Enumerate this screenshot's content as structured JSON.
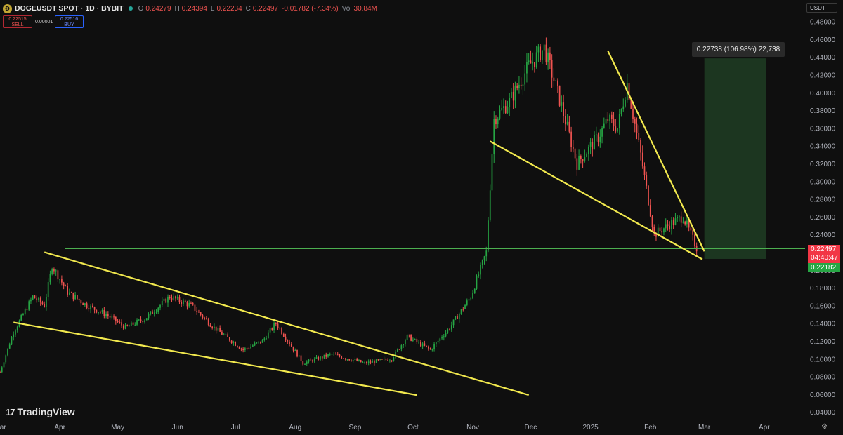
{
  "header": {
    "logo_text": "Ð",
    "title": "DOGEUSDT SPOT · 1D · BYBIT",
    "ohlc": [
      {
        "label": "O",
        "value": "0.24279"
      },
      {
        "label": "H",
        "value": "0.24394"
      },
      {
        "label": "L",
        "value": "0.22234"
      },
      {
        "label": "C",
        "value": "0.22497"
      },
      {
        "label": "",
        "value": "-0.01782 (-7.34%)"
      }
    ],
    "volume_label": "Vol",
    "volume_value": "30.84M"
  },
  "trade": {
    "sell_price": "0.22515",
    "sell_label": "SELL",
    "spread": "0.00001",
    "buy_price": "0.22516",
    "buy_label": "BUY"
  },
  "currency_label": "USDT",
  "measure_tooltip": "0.22738 (106.98%) 22,738",
  "last_price": {
    "price": "0.22497",
    "countdown": "04:40:47",
    "bid_price": "0.22182"
  },
  "branding": {
    "logo_mark": "17",
    "name": "TradingView"
  },
  "settings_icon": "⚙",
  "colors": {
    "background": "#0f0f0f",
    "up_candle": "#26a644",
    "down_candle": "#ef5350",
    "trendline": "#f2e94e",
    "support_line": "#4caf50",
    "target_zone": "#1e3b22",
    "axis_text": "#b2b5be"
  },
  "chart_data": {
    "type": "candlestick",
    "title": "DOGEUSDT SPOT · 1D · BYBIT",
    "x_axis": {
      "tick_labels": [
        "Mar",
        "Apr",
        "May",
        "Jun",
        "Jul",
        "Aug",
        "Sep",
        "Oct",
        "Nov",
        "Dec",
        "2025",
        "Feb",
        "Mar",
        "Apr"
      ],
      "range": [
        "2024-03-01",
        "2025-04-20"
      ]
    },
    "y_axis": {
      "ticks": [
        0.04,
        0.06,
        0.08,
        0.1,
        0.12,
        0.14,
        0.16,
        0.18,
        0.2,
        0.22,
        0.24,
        0.26,
        0.28,
        0.3,
        0.32,
        0.34,
        0.36,
        0.38,
        0.4,
        0.42,
        0.44,
        0.46,
        0.48
      ],
      "range": [
        0.033,
        0.49
      ]
    },
    "grid": false,
    "close_series": [
      {
        "date": "2024-03-01",
        "close": 0.085
      },
      {
        "date": "2024-03-08",
        "close": 0.13
      },
      {
        "date": "2024-03-18",
        "close": 0.17
      },
      {
        "date": "2024-03-24",
        "close": 0.16
      },
      {
        "date": "2024-03-28",
        "close": 0.205
      },
      {
        "date": "2024-04-05",
        "close": 0.175
      },
      {
        "date": "2024-04-15",
        "close": 0.16
      },
      {
        "date": "2024-04-25",
        "close": 0.15
      },
      {
        "date": "2024-05-05",
        "close": 0.135
      },
      {
        "date": "2024-05-15",
        "close": 0.145
      },
      {
        "date": "2024-05-28",
        "close": 0.17
      },
      {
        "date": "2024-06-08",
        "close": 0.16
      },
      {
        "date": "2024-06-20",
        "close": 0.135
      },
      {
        "date": "2024-07-05",
        "close": 0.11
      },
      {
        "date": "2024-07-15",
        "close": 0.12
      },
      {
        "date": "2024-07-22",
        "close": 0.14
      },
      {
        "date": "2024-08-05",
        "close": 0.095
      },
      {
        "date": "2024-08-20",
        "close": 0.105
      },
      {
        "date": "2024-09-06",
        "close": 0.095
      },
      {
        "date": "2024-09-20",
        "close": 0.1
      },
      {
        "date": "2024-09-28",
        "close": 0.125
      },
      {
        "date": "2024-10-10",
        "close": 0.11
      },
      {
        "date": "2024-10-20",
        "close": 0.135
      },
      {
        "date": "2024-10-31",
        "close": 0.17
      },
      {
        "date": "2024-11-08",
        "close": 0.22
      },
      {
        "date": "2024-11-12",
        "close": 0.37
      },
      {
        "date": "2024-11-20",
        "close": 0.39
      },
      {
        "date": "2024-11-30",
        "close": 0.43
      },
      {
        "date": "2024-12-08",
        "close": 0.45
      },
      {
        "date": "2024-12-15",
        "close": 0.4
      },
      {
        "date": "2024-12-25",
        "close": 0.32
      },
      {
        "date": "2025-01-05",
        "close": 0.35
      },
      {
        "date": "2025-01-10",
        "close": 0.37
      },
      {
        "date": "2025-01-15",
        "close": 0.36
      },
      {
        "date": "2025-01-20",
        "close": 0.41
      },
      {
        "date": "2025-01-27",
        "close": 0.33
      },
      {
        "date": "2025-02-03",
        "close": 0.24
      },
      {
        "date": "2025-02-10",
        "close": 0.25
      },
      {
        "date": "2025-02-18",
        "close": 0.26
      },
      {
        "date": "2025-02-25",
        "close": 0.225
      }
    ],
    "support_level": 0.2242,
    "trendlines": [
      {
        "from": {
          "date": "2024-03-24",
          "price": 0.22
        },
        "to": {
          "date": "2024-11-30",
          "price": 0.059
        }
      },
      {
        "from": {
          "date": "2024-03-08",
          "price": 0.141
        },
        "to": {
          "date": "2024-10-03",
          "price": 0.059
        }
      },
      {
        "from": {
          "date": "2024-11-10",
          "price": 0.345
        },
        "to": {
          "date": "2025-02-28",
          "price": 0.212
        }
      },
      {
        "from": {
          "date": "2025-01-10",
          "price": 0.447
        },
        "to": {
          "date": "2025-03-01",
          "price": 0.221
        }
      }
    ],
    "target_zone": {
      "from_date": "2025-03-01",
      "to_date": "2025-04-02",
      "low": 0.2125,
      "high": 0.4385
    },
    "measure": {
      "price_change": 0.22738,
      "percent": 106.98,
      "ticks": 22738
    }
  }
}
